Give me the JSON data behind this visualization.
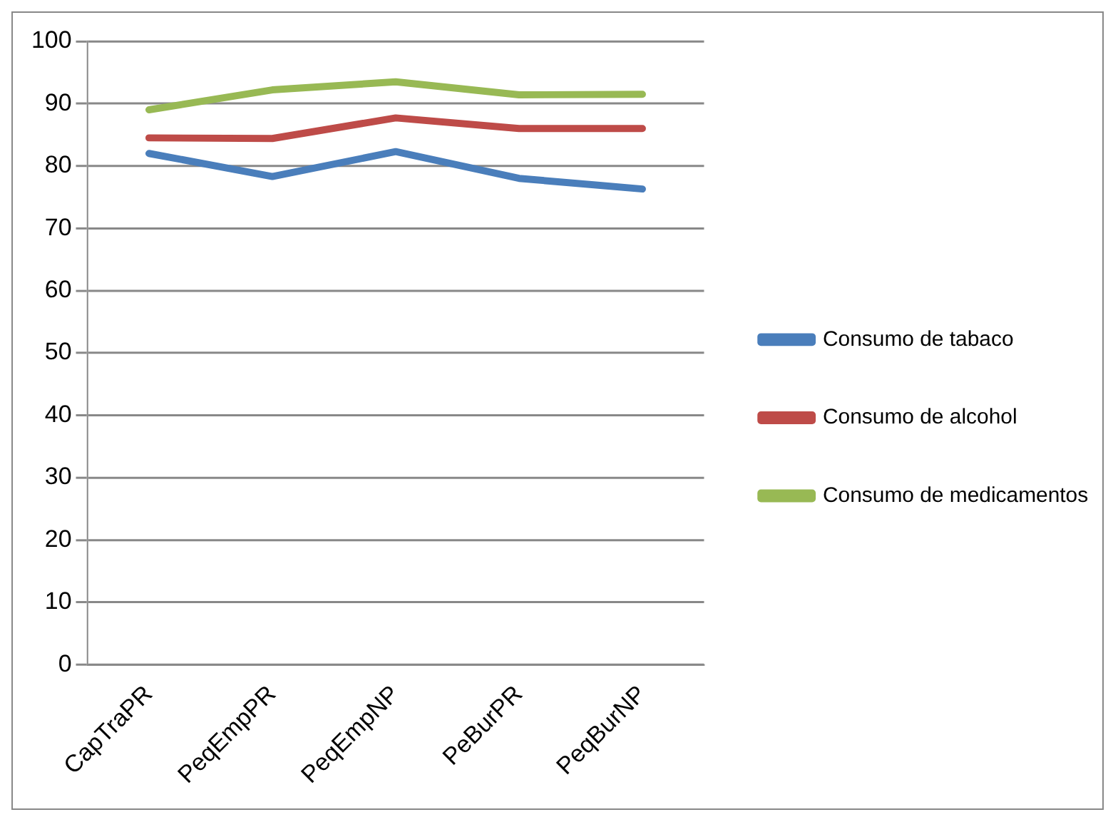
{
  "chart_data": {
    "type": "line",
    "categories": [
      "CapTraPR",
      "PeqEmpPR",
      "PeqEmpNP",
      "PeBurPR",
      "PeqBurNP"
    ],
    "series": [
      {
        "name": "Consumo de tabaco",
        "color": "#4a7ebb",
        "values": [
          82,
          78.3,
          82.3,
          78,
          76.3
        ]
      },
      {
        "name": "Consumo de alcohol",
        "color": "#be4b48",
        "values": [
          84.5,
          84.4,
          87.7,
          86,
          86
        ]
      },
      {
        "name": "Consumo de medicamentos",
        "color": "#98b954",
        "values": [
          89,
          92.2,
          93.5,
          91.4,
          91.5
        ]
      }
    ],
    "ylim": [
      0,
      100
    ],
    "yticks": [
      0,
      10,
      20,
      30,
      40,
      50,
      60,
      70,
      80,
      90,
      100
    ],
    "grid": "y",
    "legend": "right",
    "marker": "none",
    "line_style": "solid"
  }
}
